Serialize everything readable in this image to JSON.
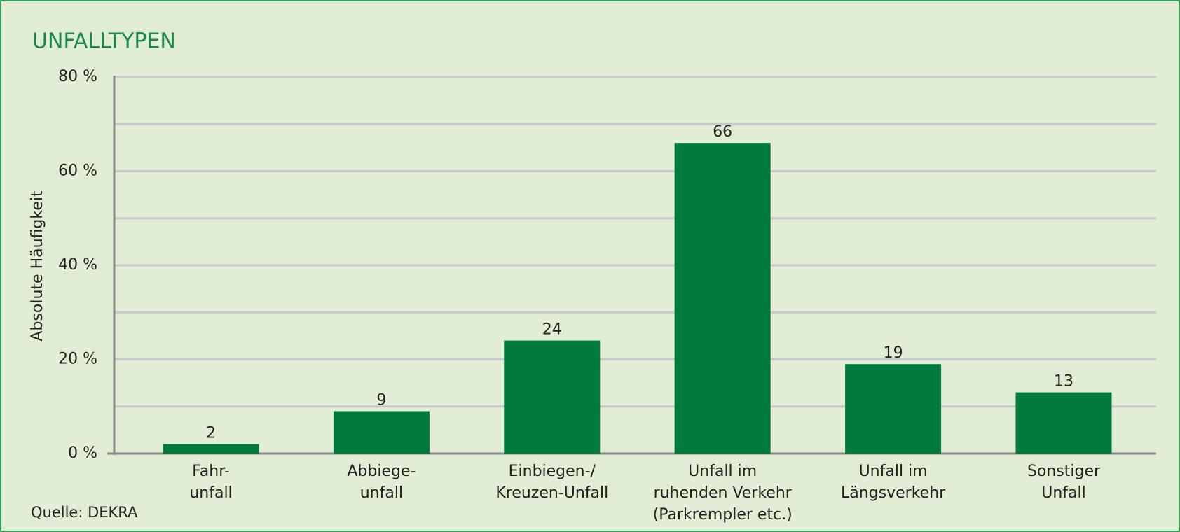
{
  "chart_data": {
    "type": "bar",
    "title": "UNFALLTYPEN",
    "y_label": "Absolute Häufigkeit",
    "source": "Quelle: DEKRA",
    "categories": [
      [
        "Fahr-",
        "unfall"
      ],
      [
        "Abbiege-",
        "unfall"
      ],
      [
        "Einbiegen-/",
        "Kreuzen-Unfall"
      ],
      [
        "Unfall im",
        "ruhenden Verkehr",
        "(Parkrempler etc.)"
      ],
      [
        "Unfall im",
        "Längsverkehr"
      ],
      [
        "Sonstiger",
        "Unfall"
      ]
    ],
    "values": [
      2,
      9,
      24,
      66,
      19,
      13
    ],
    "color": "#007a3d",
    "ylim": [
      0,
      80
    ],
    "yticks": [
      {
        "value": 0,
        "label": "0 %"
      },
      {
        "value": 20,
        "label": "20 %"
      },
      {
        "value": 40,
        "label": "40 %"
      },
      {
        "value": 60,
        "label": "60 %"
      },
      {
        "value": 80,
        "label": "80 %"
      }
    ],
    "minor_yticks": [
      10,
      30,
      50,
      70
    ],
    "grid": true
  }
}
